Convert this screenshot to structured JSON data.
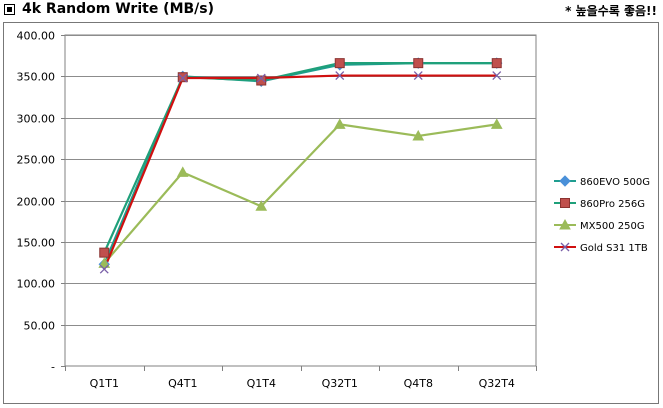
{
  "header": {
    "title": "4k Random Write (MB/s)",
    "note": "* 높을수록 좋음!!"
  },
  "chart_data": {
    "type": "line",
    "title": "4k Random Write (MB/s)",
    "categories": [
      "Q1T1",
      "Q4T1",
      "Q1T4",
      "Q32T1",
      "Q4T8",
      "Q32T4"
    ],
    "ylim": [
      0,
      400
    ],
    "yticks": [
      "-",
      "50.00",
      "100.00",
      "150.00",
      "200.00",
      "250.00",
      "300.00",
      "350.00",
      "400.00"
    ],
    "grid": true,
    "legend_position": "right",
    "series": [
      {
        "name": "860EVO 500G",
        "color": "#4a90d9",
        "marker": "diamond",
        "values": [
          123,
          350,
          344,
          364,
          366,
          366
        ]
      },
      {
        "name": "860Pro 256G",
        "color": "#c0504d",
        "marker": "square",
        "values": [
          137,
          349,
          345,
          366,
          366,
          366
        ]
      },
      {
        "name": "MX500 250G",
        "color": "#9bbb59",
        "marker": "triangle",
        "values": [
          124,
          234,
          193,
          292,
          278,
          292
        ]
      },
      {
        "name": "Gold S31 1TB",
        "color": "#d01010",
        "marker": "x",
        "values": [
          117,
          348,
          348,
          351,
          351,
          351
        ]
      }
    ]
  }
}
